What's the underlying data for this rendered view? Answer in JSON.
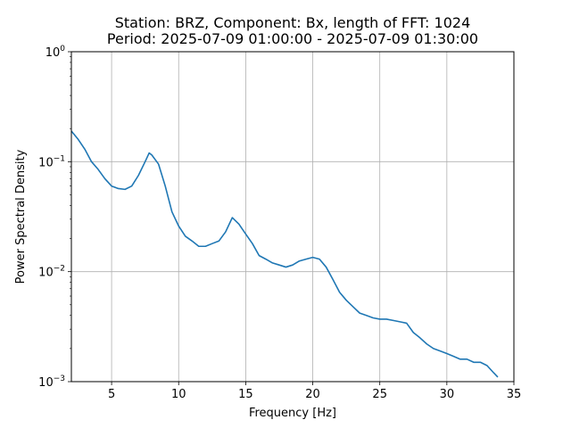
{
  "chart_data": {
    "type": "line",
    "title_line1": "Station: BRZ, Component: Bx, length of FFT: 1024",
    "title_line2": "Period: 2025-07-09 01:00:00 - 2025-07-09 01:30:00",
    "xlabel": "Frequency [Hz]",
    "ylabel": "Power Spectral Density",
    "xlim": [
      2,
      35
    ],
    "ylim": [
      0.001,
      1
    ],
    "yscale": "log",
    "grid": true,
    "xticks": [
      5,
      10,
      15,
      20,
      25,
      30,
      35
    ],
    "yticks": [
      0.001,
      0.01,
      0.1,
      1
    ],
    "ytick_labels": [
      {
        "base": "10",
        "exp": "−3"
      },
      {
        "base": "10",
        "exp": "−2"
      },
      {
        "base": "10",
        "exp": "−1"
      },
      {
        "base": "10",
        "exp": "0"
      }
    ],
    "line_color": "#1f77b4",
    "series": [
      {
        "x": [
          2.0,
          2.5,
          3.0,
          3.5,
          4.0,
          4.5,
          5.0,
          5.5,
          6.0,
          6.5,
          7.0,
          7.5,
          7.8,
          8.0,
          8.5,
          9.0,
          9.5,
          10.0,
          10.5,
          11.0,
          11.5,
          12.0,
          12.5,
          13.0,
          13.5,
          14.0,
          14.5,
          15.0,
          15.5,
          16.0,
          16.5,
          17.0,
          17.5,
          18.0,
          18.5,
          19.0,
          19.5,
          20.0,
          20.5,
          21.0,
          21.5,
          22.0,
          22.5,
          23.0,
          23.5,
          24.0,
          24.5,
          25.0,
          25.5,
          26.0,
          26.5,
          27.0,
          27.5,
          28.0,
          28.5,
          29.0,
          29.5,
          30.0,
          30.5,
          31.0,
          31.5,
          32.0,
          32.5,
          33.0,
          33.5,
          33.8
        ],
        "y": [
          0.19,
          0.16,
          0.13,
          0.1,
          0.085,
          0.07,
          0.06,
          0.057,
          0.056,
          0.06,
          0.075,
          0.1,
          0.12,
          0.115,
          0.095,
          0.06,
          0.035,
          0.026,
          0.021,
          0.019,
          0.017,
          0.017,
          0.018,
          0.019,
          0.023,
          0.031,
          0.027,
          0.022,
          0.018,
          0.014,
          0.013,
          0.012,
          0.0115,
          0.011,
          0.0115,
          0.0125,
          0.013,
          0.0135,
          0.013,
          0.011,
          0.0085,
          0.0065,
          0.0055,
          0.0048,
          0.0042,
          0.004,
          0.0038,
          0.0037,
          0.0037,
          0.0036,
          0.0035,
          0.0034,
          0.0028,
          0.0025,
          0.0022,
          0.002,
          0.0019,
          0.0018,
          0.0017,
          0.0016,
          0.0016,
          0.0015,
          0.0015,
          0.0014,
          0.0012,
          0.0011
        ]
      }
    ]
  }
}
